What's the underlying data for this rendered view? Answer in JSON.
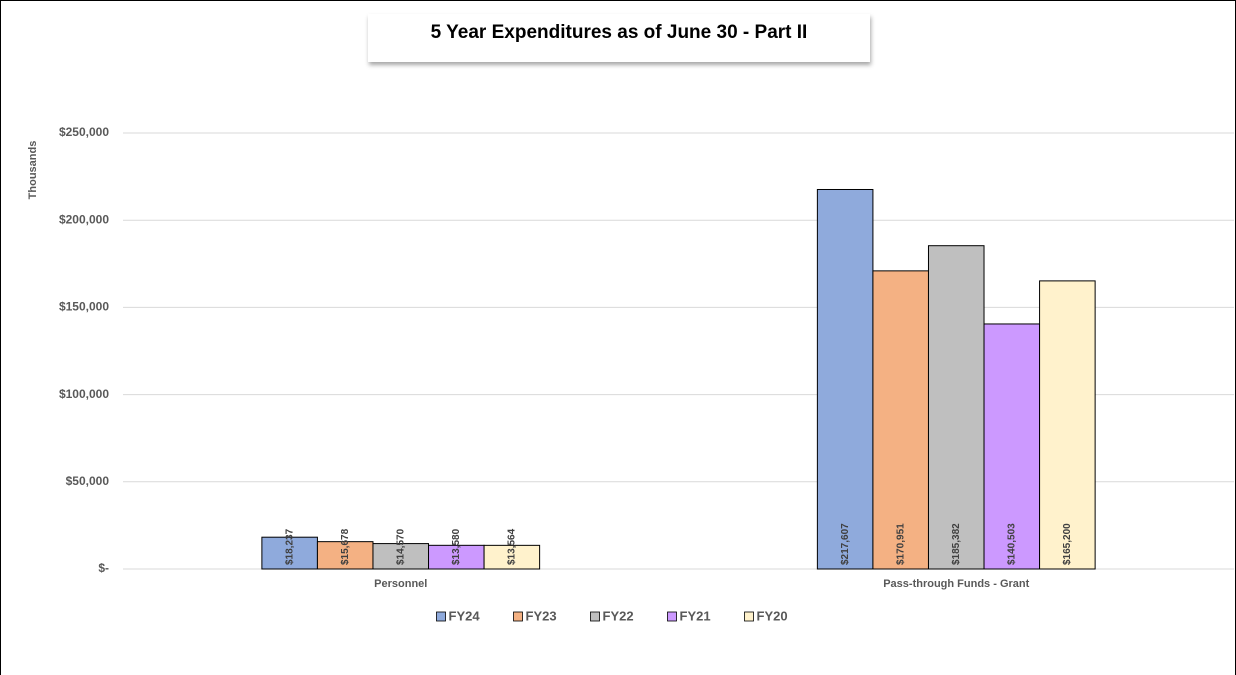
{
  "chart_data": {
    "type": "bar",
    "title": "5 Year Expenditures as of June 30 - Part II",
    "y_axis_label": "Thousands",
    "categories": [
      "Personnel",
      "Pass-through Funds - Grant"
    ],
    "series": [
      {
        "name": "FY24",
        "color": "#8faadc",
        "values": [
          18237,
          217607
        ],
        "value_labels": [
          "$18,237",
          "$217,607"
        ]
      },
      {
        "name": "FY23",
        "color": "#f4b183",
        "values": [
          15678,
          170951
        ],
        "value_labels": [
          "$15,678",
          "$170,951"
        ]
      },
      {
        "name": "FY22",
        "color": "#bfbfbf",
        "values": [
          14570,
          185382
        ],
        "value_labels": [
          "$14,570",
          "$185,382"
        ]
      },
      {
        "name": "FY21",
        "color": "#cc99ff",
        "values": [
          13580,
          140503
        ],
        "value_labels": [
          "$13,580",
          "$140,503"
        ]
      },
      {
        "name": "FY20",
        "color": "#fff2cc",
        "values": [
          13564,
          165200
        ],
        "value_labels": [
          "$13,564",
          "$165,200"
        ]
      }
    ],
    "ylim": [
      0,
      250000
    ],
    "yticks": [
      {
        "value": 0,
        "label": "$-"
      },
      {
        "value": 50000,
        "label": "$50,000"
      },
      {
        "value": 100000,
        "label": "$100,000"
      },
      {
        "value": 150000,
        "label": "$150,000"
      },
      {
        "value": 200000,
        "label": "$200,000"
      },
      {
        "value": 250000,
        "label": "$250,000"
      }
    ],
    "grid": true,
    "legend": "bottom"
  }
}
